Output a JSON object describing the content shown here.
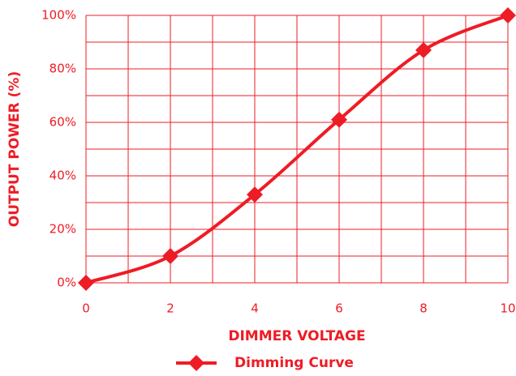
{
  "chart_data": {
    "type": "line",
    "x_label": "DIMMER VOLTAGE",
    "y_label": "OUTPUT POWER (%)",
    "x": [
      0,
      2,
      4,
      6,
      8,
      10
    ],
    "series": [
      {
        "name": "Dimming Curve",
        "color": "#ee1c25",
        "values": [
          0,
          10,
          33,
          61,
          87,
          100
        ]
      }
    ],
    "xlim": [
      0,
      10
    ],
    "xticks": [
      0,
      2,
      4,
      6,
      8,
      10
    ],
    "ylim": [
      0,
      100
    ],
    "yticks": [
      {
        "value": 0,
        "label": "0%"
      },
      {
        "value": 20,
        "label": "20%"
      },
      {
        "value": 40,
        "label": "40%"
      },
      {
        "value": 60,
        "label": "60%"
      },
      {
        "value": 80,
        "label": "80%"
      },
      {
        "value": 100,
        "label": "100%"
      }
    ],
    "grid": true,
    "legend": "bottom"
  }
}
